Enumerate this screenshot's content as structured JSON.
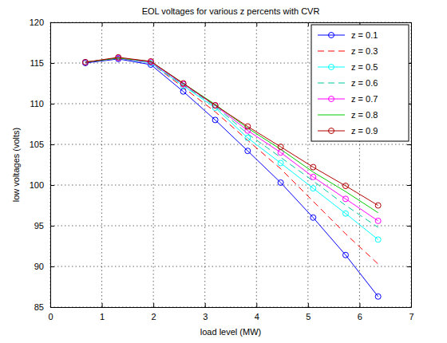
{
  "chart_data": {
    "type": "line",
    "title": "EOL voltages for various z percents with CVR",
    "x_label": "load level (MW)",
    "y_label": "low voltages (volts)",
    "x": [
      0.68,
      1.32,
      1.95,
      2.58,
      3.2,
      3.83,
      4.47,
      5.1,
      5.73,
      6.36
    ],
    "series": [
      {
        "name": "z = 0.1",
        "color": "#0000ff",
        "marker": "circle",
        "line_style": "solid",
        "values": [
          115.0,
          115.5,
          114.8,
          111.5,
          108.0,
          104.2,
          100.3,
          96.0,
          91.4,
          86.3
        ]
      },
      {
        "name": "z = 0.3",
        "color": "#ff0000",
        "marker": "none",
        "line_style": "dashed",
        "values": [
          115.1,
          115.6,
          115.0,
          112.0,
          109.0,
          105.5,
          102.0,
          98.0,
          94.0,
          90.3
        ]
      },
      {
        "name": "z = 0.5",
        "color": "#00ffff",
        "marker": "circle",
        "line_style": "solid",
        "values": [
          115.1,
          115.6,
          115.0,
          112.2,
          109.5,
          105.8,
          102.7,
          99.6,
          96.5,
          93.3
        ]
      },
      {
        "name": "z = 0.6",
        "color": "#00c8a0",
        "marker": "none",
        "line_style": "dashed",
        "values": [
          115.1,
          115.6,
          115.1,
          112.3,
          109.7,
          106.3,
          103.4,
          100.5,
          97.5,
          94.8
        ]
      },
      {
        "name": "z = 0.7",
        "color": "#ff00ff",
        "marker": "circle",
        "line_style": "solid",
        "values": [
          115.1,
          115.6,
          115.1,
          112.4,
          109.8,
          106.7,
          104.0,
          101.0,
          98.3,
          95.6
        ]
      },
      {
        "name": "z = 0.8",
        "color": "#00cc00",
        "marker": "none",
        "line_style": "solid",
        "values": [
          115.1,
          115.6,
          115.2,
          112.5,
          109.9,
          107.0,
          104.4,
          101.6,
          99.2,
          96.6
        ]
      },
      {
        "name": "z = 0.9",
        "color": "#b00000",
        "marker": "circle",
        "line_style": "solid",
        "values": [
          115.1,
          115.7,
          115.2,
          112.5,
          109.8,
          107.2,
          104.7,
          102.2,
          99.9,
          97.5
        ]
      }
    ],
    "xlim": [
      0,
      7
    ],
    "xticks": [
      0,
      1,
      2,
      3,
      4,
      5,
      6,
      7
    ],
    "ylim": [
      85,
      120
    ],
    "yticks": [
      85,
      90,
      95,
      100,
      105,
      110,
      115,
      120
    ],
    "grid": true,
    "legend": "northeast"
  }
}
